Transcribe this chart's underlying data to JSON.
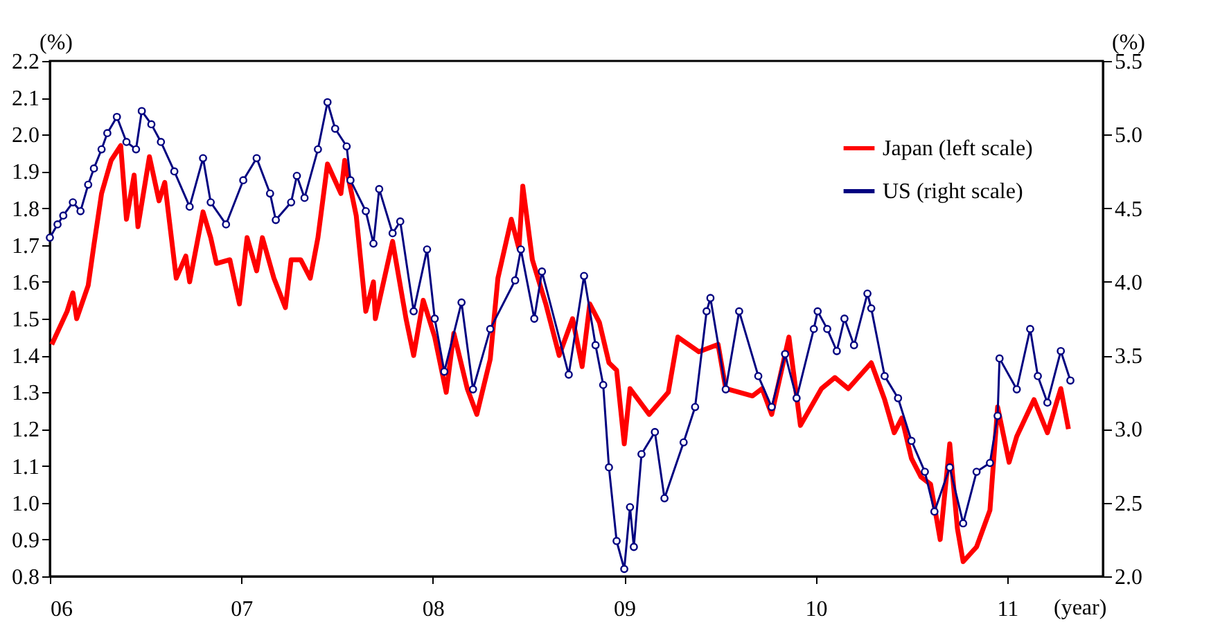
{
  "chart_data": {
    "type": "line",
    "ylabel": "(%)",
    "y2label": "(%)",
    "xlabel": "(year)",
    "xlim": [
      2006,
      2011.5
    ],
    "xticks": [
      {
        "value": 2006,
        "label": "06"
      },
      {
        "value": 2007,
        "label": "07"
      },
      {
        "value": 2008,
        "label": "08"
      },
      {
        "value": 2009,
        "label": "09"
      },
      {
        "value": 2010,
        "label": "10"
      },
      {
        "value": 2011,
        "label": "11"
      }
    ],
    "ylim": [
      0.8,
      2.2
    ],
    "yticks": [
      0.8,
      0.9,
      {
        "value": 1,
        "label": "1.0"
      },
      1.1,
      1.2,
      1.3,
      1.4,
      1.5,
      1.6,
      1.7,
      1.8,
      1.9,
      {
        "value": 2,
        "label": "2.0"
      },
      2.1,
      2.2
    ],
    "y2lim": [
      2.0,
      5.5
    ],
    "y2ticks": [
      {
        "value": 2,
        "label": "2.0"
      },
      2.5,
      {
        "value": 3,
        "label": "3.0"
      },
      3.5,
      {
        "value": 4,
        "label": "4.0"
      },
      4.5,
      {
        "value": 5,
        "label": "5.0"
      },
      5.5
    ],
    "grid": false,
    "legend": "top right",
    "line_style": "solid",
    "series": [
      {
        "name": "Japan (left scale)",
        "color": "#ff0000",
        "marker": "none",
        "x": [
          2006.01,
          2006.09,
          2006.12,
          2006.14,
          2006.2,
          2006.23,
          2006.27,
          2006.32,
          2006.37,
          2006.4,
          2006.44,
          2006.46,
          2006.52,
          2006.57,
          2006.6,
          2006.66,
          2006.71,
          2006.73,
          2006.8,
          2006.84,
          2006.87,
          2006.94,
          2006.99,
          2007.03,
          2007.08,
          2007.11,
          2007.17,
          2007.23,
          2007.26,
          2007.31,
          2007.36,
          2007.4,
          2007.45,
          2007.52,
          2007.54,
          2007.6,
          2007.65,
          2007.69,
          2007.7,
          2007.79,
          2007.86,
          2007.9,
          2007.95,
          2008.01,
          2008.07,
          2008.11,
          2008.18,
          2008.23,
          2008.3,
          2008.34,
          2008.41,
          2008.45,
          2008.47,
          2008.52,
          2008.59,
          2008.66,
          2008.73,
          2008.78,
          2008.82,
          2008.87,
          2008.92,
          2008.96,
          2009.0,
          2009.03,
          2009.13,
          2009.23,
          2009.28,
          2009.39,
          2009.49,
          2009.53,
          2009.67,
          2009.72,
          2009.77,
          2009.86,
          2009.92,
          2010.03,
          2010.1,
          2010.17,
          2010.29,
          2010.36,
          2010.41,
          2010.45,
          2010.5,
          2010.55,
          2010.6,
          2010.65,
          2010.7,
          2010.74,
          2010.77,
          2010.84,
          2010.91,
          2010.95,
          2011.01,
          2011.05,
          2011.14,
          2011.21,
          2011.28,
          2011.32
        ],
        "values": [
          1.43,
          1.52,
          1.57,
          1.5,
          1.59,
          1.7,
          1.84,
          1.93,
          1.97,
          1.77,
          1.89,
          1.75,
          1.94,
          1.82,
          1.87,
          1.61,
          1.67,
          1.6,
          1.79,
          1.72,
          1.65,
          1.66,
          1.54,
          1.72,
          1.63,
          1.72,
          1.61,
          1.53,
          1.66,
          1.66,
          1.61,
          1.72,
          1.92,
          1.84,
          1.93,
          1.78,
          1.52,
          1.6,
          1.5,
          1.71,
          1.5,
          1.4,
          1.55,
          1.45,
          1.3,
          1.46,
          1.31,
          1.24,
          1.39,
          1.61,
          1.77,
          1.69,
          1.86,
          1.66,
          1.54,
          1.4,
          1.5,
          1.37,
          1.54,
          1.49,
          1.38,
          1.36,
          1.16,
          1.31,
          1.24,
          1.3,
          1.45,
          1.41,
          1.43,
          1.31,
          1.29,
          1.31,
          1.24,
          1.45,
          1.21,
          1.31,
          1.34,
          1.31,
          1.38,
          1.28,
          1.19,
          1.23,
          1.12,
          1.07,
          1.05,
          0.9,
          1.16,
          0.93,
          0.84,
          0.88,
          0.98,
          1.26,
          1.11,
          1.18,
          1.28,
          1.19,
          1.31,
          1.2
        ]
      },
      {
        "name": "US (right scale)",
        "color": "#000080",
        "marker": "circle",
        "axis": "y2",
        "x": [
          2006.0,
          2006.04,
          2006.07,
          2006.12,
          2006.16,
          2006.2,
          2006.23,
          2006.27,
          2006.3,
          2006.35,
          2006.4,
          2006.45,
          2006.48,
          2006.53,
          2006.58,
          2006.65,
          2006.73,
          2006.8,
          2006.84,
          2006.92,
          2007.01,
          2007.08,
          2007.15,
          2007.18,
          2007.26,
          2007.29,
          2007.33,
          2007.4,
          2007.45,
          2007.49,
          2007.55,
          2007.57,
          2007.65,
          2007.69,
          2007.72,
          2007.79,
          2007.83,
          2007.9,
          2007.97,
          2008.01,
          2008.06,
          2008.15,
          2008.21,
          2008.3,
          2008.43,
          2008.46,
          2008.53,
          2008.57,
          2008.71,
          2008.79,
          2008.85,
          2008.89,
          2008.92,
          2008.96,
          2009.0,
          2009.03,
          2009.05,
          2009.09,
          2009.16,
          2009.21,
          2009.31,
          2009.37,
          2009.43,
          2009.45,
          2009.53,
          2009.6,
          2009.7,
          2009.77,
          2009.84,
          2009.9,
          2009.99,
          2010.01,
          2010.06,
          2010.11,
          2010.15,
          2010.2,
          2010.27,
          2010.29,
          2010.36,
          2010.43,
          2010.5,
          2010.57,
          2010.62,
          2010.7,
          2010.77,
          2010.84,
          2010.91,
          2010.95,
          2010.96,
          2011.05,
          2011.12,
          2011.16,
          2011.21,
          2011.28,
          2011.33
        ],
        "values": [
          4.3,
          4.39,
          4.45,
          4.54,
          4.48,
          4.66,
          4.77,
          4.9,
          5.01,
          5.12,
          4.95,
          4.9,
          5.16,
          5.07,
          4.95,
          4.75,
          4.51,
          4.84,
          4.54,
          4.39,
          4.69,
          4.84,
          4.6,
          4.42,
          4.54,
          4.72,
          4.57,
          4.9,
          5.22,
          5.04,
          4.92,
          4.69,
          4.48,
          4.26,
          4.63,
          4.33,
          4.41,
          3.8,
          4.22,
          3.75,
          3.39,
          3.86,
          3.27,
          3.68,
          4.01,
          4.22,
          3.75,
          4.07,
          3.37,
          4.04,
          3.57,
          3.3,
          2.74,
          2.24,
          2.05,
          2.47,
          2.2,
          2.83,
          2.98,
          2.53,
          2.91,
          3.15,
          3.8,
          3.89,
          3.27,
          3.8,
          3.36,
          3.15,
          3.51,
          3.21,
          3.68,
          3.8,
          3.68,
          3.53,
          3.75,
          3.57,
          3.92,
          3.82,
          3.36,
          3.21,
          2.92,
          2.71,
          2.44,
          2.74,
          2.36,
          2.71,
          2.77,
          3.09,
          3.48,
          3.27,
          3.68,
          3.36,
          3.18,
          3.53,
          3.33
        ]
      }
    ]
  }
}
